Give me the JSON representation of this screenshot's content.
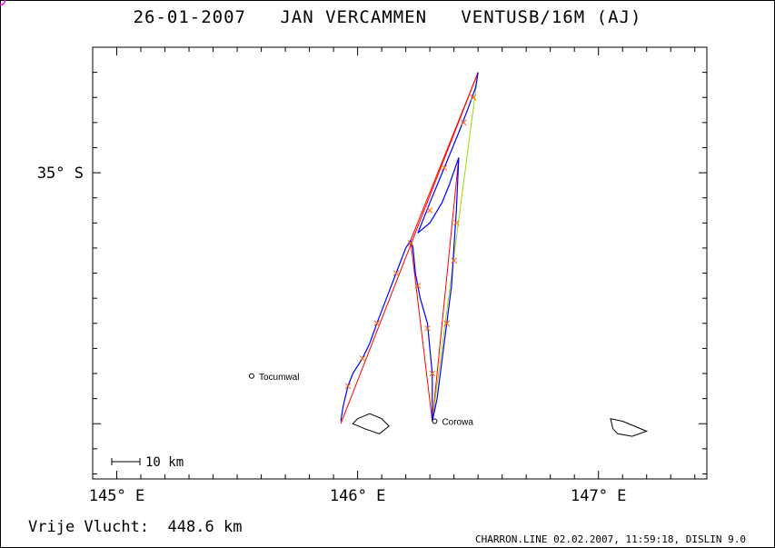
{
  "title": {
    "date": "26-01-2007",
    "pilot": "JAN VERCAMMEN",
    "glider": "VENTUSB/16M (AJ)"
  },
  "footer": {
    "distance_label": "Vrije Vlucht:",
    "distance_value": "448.6 km",
    "credit": "CHARRON.LINE 02.02.2007, 11:59:18, DISLIN 9.0"
  },
  "scale_bar": {
    "label": "10 km"
  },
  "colors": {
    "track": "#0000ff",
    "task_leg": "#ff0000",
    "closing_leg": "#99dd00",
    "fix_marker": "#ff6600",
    "turnpoint": "#ff00ff",
    "coast": "#000000"
  },
  "chart_data": {
    "type": "map",
    "x_axis": {
      "unit": "longitude",
      "range": [
        144.9,
        147.45
      ],
      "tick_labels": [
        "145° E",
        "146° E",
        "147° E"
      ],
      "tick_values": [
        145,
        146,
        147
      ]
    },
    "y_axis": {
      "unit": "latitude",
      "range": [
        -36.22,
        -34.5
      ],
      "tick_labels": [
        "35° S"
      ],
      "tick_values": [
        -35
      ]
    },
    "places": [
      {
        "name": "Tocumwal",
        "lon": 145.56,
        "lat": -35.81
      },
      {
        "name": "Corowa",
        "lon": 146.32,
        "lat": -35.99
      }
    ],
    "turnpoints": [
      {
        "lon": 145.93,
        "lat": -36.0
      },
      {
        "lon": 146.22,
        "lat": -35.27
      },
      {
        "lon": 146.31,
        "lat": -35.99
      },
      {
        "lon": 146.42,
        "lat": -34.94
      },
      {
        "lon": 146.5,
        "lat": -34.6
      }
    ],
    "legs": [
      {
        "kind": "task",
        "points": [
          [
            145.93,
            -36.0
          ],
          [
            146.5,
            -34.6
          ]
        ]
      },
      {
        "kind": "task",
        "points": [
          [
            146.5,
            -34.6
          ],
          [
            146.22,
            -35.27
          ],
          [
            146.31,
            -35.99
          ],
          [
            146.42,
            -34.94
          ]
        ]
      },
      {
        "kind": "closing",
        "points": [
          [
            146.31,
            -35.99
          ],
          [
            146.5,
            -34.6
          ]
        ]
      }
    ],
    "track": [
      [
        145.93,
        -35.99
      ],
      [
        145.94,
        -35.93
      ],
      [
        145.96,
        -35.85
      ],
      [
        145.98,
        -35.8
      ],
      [
        146.02,
        -35.74
      ],
      [
        146.05,
        -35.68
      ],
      [
        146.08,
        -35.6
      ],
      [
        146.12,
        -35.5
      ],
      [
        146.16,
        -35.4
      ],
      [
        146.2,
        -35.3
      ],
      [
        146.22,
        -35.27
      ],
      [
        146.23,
        -35.3
      ],
      [
        146.24,
        -35.4
      ],
      [
        146.26,
        -35.5
      ],
      [
        146.29,
        -35.6
      ],
      [
        146.3,
        -35.7
      ],
      [
        146.31,
        -35.8
      ],
      [
        146.31,
        -35.9
      ],
      [
        146.31,
        -35.99
      ],
      [
        146.33,
        -35.9
      ],
      [
        146.35,
        -35.75
      ],
      [
        146.37,
        -35.6
      ],
      [
        146.39,
        -35.45
      ],
      [
        146.4,
        -35.3
      ],
      [
        146.41,
        -35.15
      ],
      [
        146.42,
        -34.94
      ],
      [
        146.38,
        -35.05
      ],
      [
        146.35,
        -35.12
      ],
      [
        146.3,
        -35.2
      ],
      [
        146.25,
        -35.24
      ],
      [
        146.3,
        -35.12
      ],
      [
        146.36,
        -34.98
      ],
      [
        146.42,
        -34.84
      ],
      [
        146.46,
        -34.74
      ],
      [
        146.49,
        -34.66
      ],
      [
        146.5,
        -34.6
      ]
    ],
    "fixes": [
      [
        145.96,
        -35.85
      ],
      [
        146.02,
        -35.74
      ],
      [
        146.08,
        -35.6
      ],
      [
        146.16,
        -35.4
      ],
      [
        146.22,
        -35.28
      ],
      [
        146.25,
        -35.45
      ],
      [
        146.29,
        -35.62
      ],
      [
        146.31,
        -35.8
      ],
      [
        146.37,
        -35.6
      ],
      [
        146.4,
        -35.35
      ],
      [
        146.41,
        -35.2
      ],
      [
        146.3,
        -35.15
      ],
      [
        146.36,
        -34.98
      ],
      [
        146.44,
        -34.8
      ],
      [
        146.48,
        -34.7
      ]
    ],
    "coast": [
      {
        "name": "north-coast",
        "points": [
          [
            146.0,
            -35.98
          ],
          [
            146.05,
            -35.96
          ],
          [
            146.1,
            -35.98
          ],
          [
            146.13,
            -36.01
          ],
          [
            146.09,
            -36.04
          ],
          [
            146.03,
            -36.02
          ],
          [
            145.98,
            -36.0
          ]
        ]
      },
      {
        "name": "east-coast",
        "points": [
          [
            147.05,
            -35.98
          ],
          [
            147.1,
            -35.99
          ],
          [
            147.15,
            -36.01
          ],
          [
            147.2,
            -36.03
          ],
          [
            147.14,
            -36.05
          ],
          [
            147.08,
            -36.04
          ],
          [
            147.06,
            -36.02
          ]
        ]
      }
    ]
  }
}
